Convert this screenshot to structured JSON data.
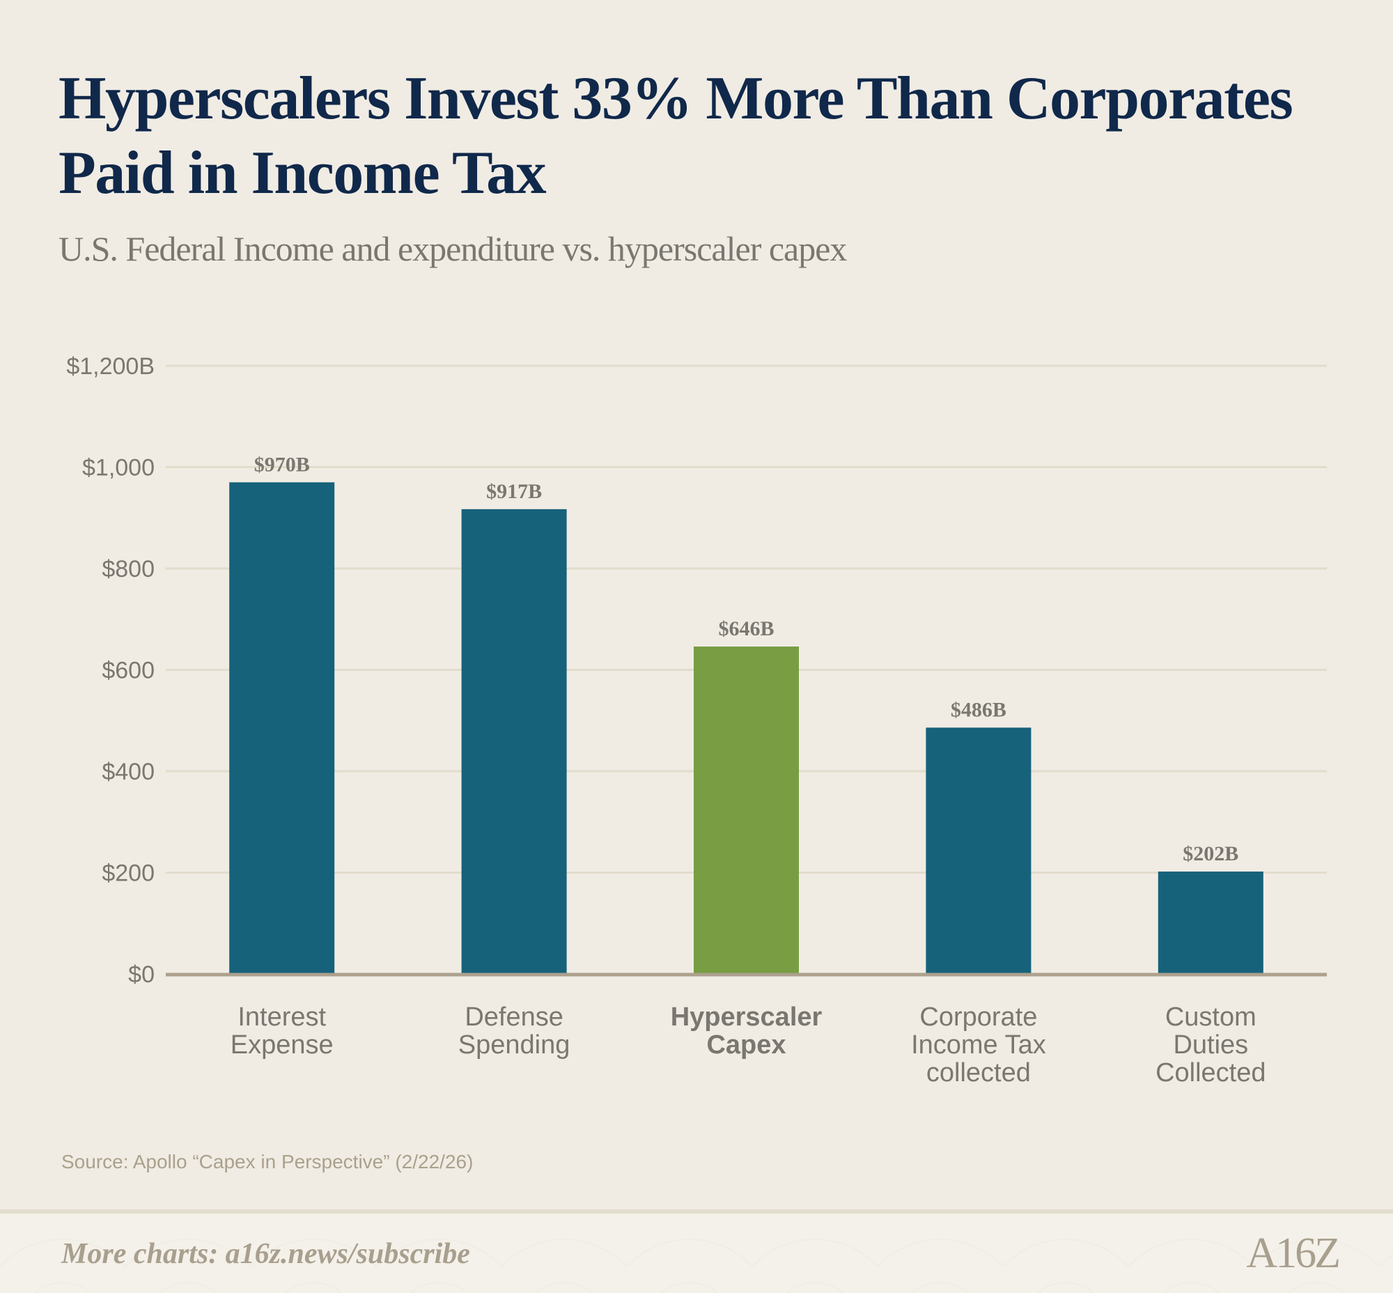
{
  "title_line1": "Hyperscalers Invest 33% More Than Corporates",
  "title_line2": "Paid in Income Tax",
  "subtitle": "U.S. Federal Income and expenditure vs. hyperscaler capex",
  "source": "Source: Apollo “Capex in Perspective” (2/22/26)",
  "footer": {
    "link_text": "More charts: a16z.news/subscribe",
    "logo": "A16Z"
  },
  "colors": {
    "background": "#f0ece4",
    "bar": "#16627b",
    "highlight_bar": "#789d42",
    "title": "#10284a",
    "text": "#7a7770",
    "gridline": "#e2dccb",
    "axis": "#ada08d"
  },
  "chart_data": {
    "type": "bar",
    "categories": [
      [
        "Interest",
        "Expense"
      ],
      [
        "Defense",
        "Spending"
      ],
      [
        "Hyperscaler",
        "Capex"
      ],
      [
        "Corporate",
        "Income Tax",
        "collected"
      ],
      [
        "Custom",
        "Duties",
        "Collected"
      ]
    ],
    "values": [
      970,
      917,
      646,
      486,
      202
    ],
    "data_labels": [
      "$970B",
      "$917B",
      "$646B",
      "$486B",
      "$202B"
    ],
    "highlight_index": 2,
    "ylim": [
      0,
      1200
    ],
    "yticks": [
      0,
      200,
      400,
      600,
      800,
      1000,
      1200
    ],
    "ytick_labels": [
      "$0",
      "$200",
      "$400",
      "$600",
      "$800",
      "$1,000",
      "$1,200B"
    ],
    "grid": true,
    "xlabel": "",
    "ylabel": ""
  }
}
